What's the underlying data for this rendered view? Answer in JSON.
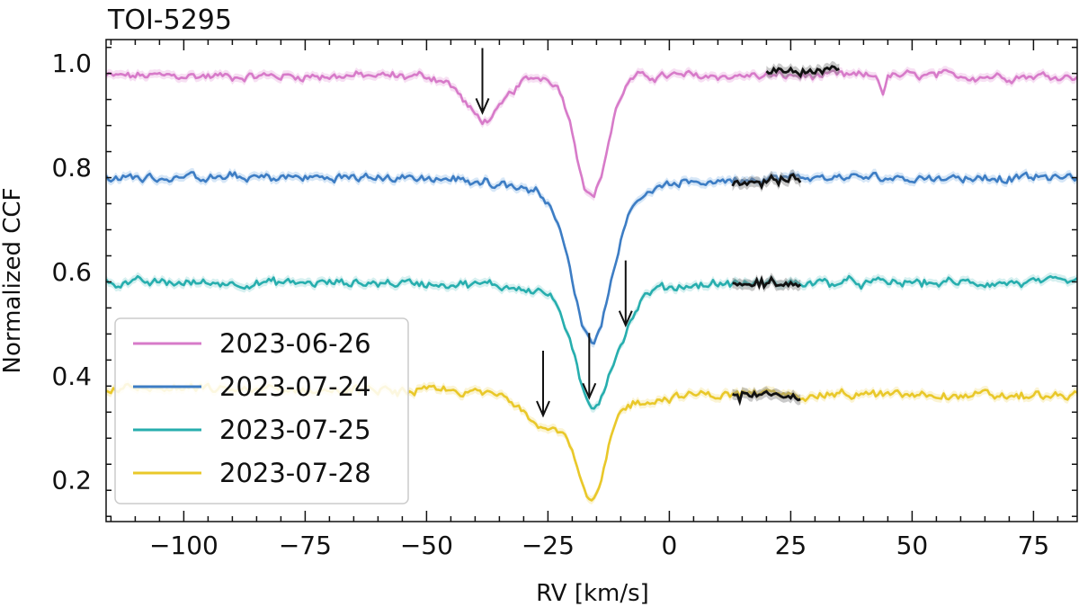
{
  "chart_data": {
    "type": "line",
    "title": "TOI-5295",
    "xlabel": "RV [km/s]",
    "ylabel": "Normalized CCF",
    "xlim": [
      -116,
      84
    ],
    "ylim": [
      0.12,
      1.045
    ],
    "xticks": [
      -100,
      -75,
      -50,
      -25,
      0,
      25,
      50,
      75
    ],
    "xtick_labels": [
      "−100",
      "−75",
      "−50",
      "−25",
      "0",
      "25",
      "50",
      "75"
    ],
    "yticks": [
      0.2,
      0.4,
      0.6,
      0.8,
      1.0
    ],
    "ytick_labels": [
      "0.2",
      "0.4",
      "0.6",
      "0.8",
      "1.0"
    ],
    "legend_position": "lower-left",
    "grid": false,
    "series": [
      {
        "name": "2023-06-26",
        "color": "#d77bc9",
        "band_color": "#f0c6ea",
        "baseline": 0.975,
        "dips": [
          {
            "center": -16,
            "depth": 0.23,
            "width": 3.2
          },
          {
            "center": -38,
            "depth": 0.085,
            "width": 4.0
          }
        ],
        "extra_dips": [
          {
            "center": 44,
            "depth": 0.03,
            "width": 0.5
          }
        ],
        "highlight": {
          "x": [
            20,
            35
          ],
          "offset": 0.008
        },
        "arrows": [
          -38.5
        ]
      },
      {
        "name": "2023-07-24",
        "color": "#3d7dc4",
        "band_color": "#b7d3f0",
        "baseline": 0.78,
        "dips": [
          {
            "center": -16,
            "depth": 0.28,
            "width": 4.0
          },
          {
            "center": -16,
            "depth": 0.03,
            "width": 14.0
          }
        ],
        "extra_dips": [],
        "highlight": {
          "x": [
            13,
            27
          ],
          "offset": -0.004
        },
        "arrows": []
      },
      {
        "name": "2023-07-25",
        "color": "#27aeae",
        "band_color": "#b4e3e3",
        "baseline": 0.578,
        "dips": [
          {
            "center": -16,
            "depth": 0.215,
            "width": 3.5
          },
          {
            "center": -9.5,
            "depth": 0.05,
            "width": 2.6
          },
          {
            "center": -16,
            "depth": 0.02,
            "width": 12.0
          }
        ],
        "extra_dips": [],
        "highlight": {
          "x": [
            13,
            27
          ],
          "offset": -0.002
        },
        "arrows": [
          -16.5,
          -9
        ]
      },
      {
        "name": "2023-07-28",
        "color": "#e9c82a",
        "band_color": "#f7ebb0",
        "baseline": 0.375,
        "tilt": -0.015,
        "dips": [
          {
            "center": -16,
            "depth": 0.185,
            "width": 2.8
          },
          {
            "center": -25,
            "depth": 0.05,
            "width": 3.8
          },
          {
            "center": -16,
            "depth": 0.025,
            "width": 11.0
          }
        ],
        "extra_dips": [],
        "highlight": {
          "x": [
            13,
            27
          ],
          "offset": -0.004
        },
        "arrows": [
          -26
        ]
      }
    ]
  }
}
